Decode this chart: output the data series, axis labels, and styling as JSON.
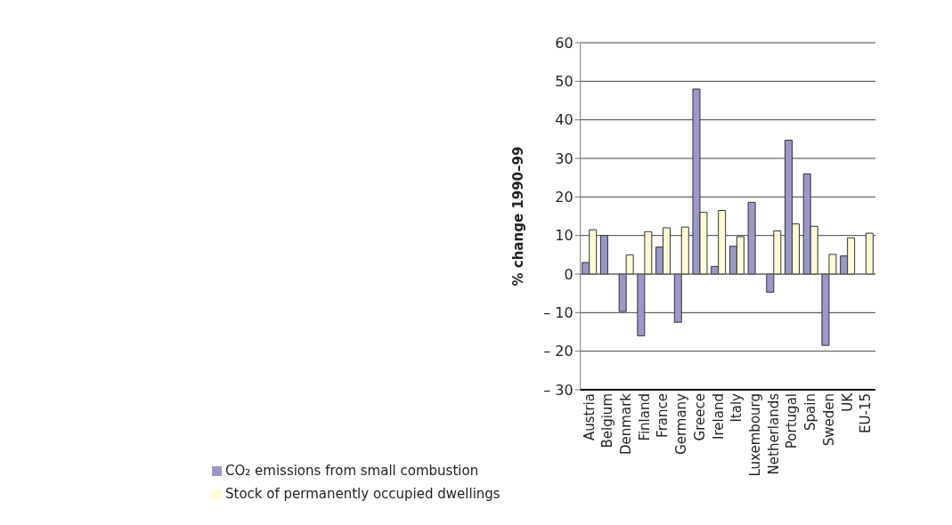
{
  "chart_data": {
    "type": "bar",
    "ylabel": "% change 1990–99",
    "categories": [
      "Austria",
      "Belgium",
      "Denmark",
      "Finland",
      "France",
      "Germany",
      "Greece",
      "Ireland",
      "Italy",
      "Luxembourg",
      "Netherlands",
      "Portugal",
      "Spain",
      "Sweden",
      "UK",
      "EU-15"
    ],
    "series": [
      {
        "name": "CO₂ emissions from small combustion",
        "color": "#9b97c8",
        "values": [
          3,
          10,
          -9.7,
          -16,
          7,
          -12.5,
          48,
          2,
          7.2,
          18.6,
          -4.7,
          34.7,
          26,
          -18.5,
          4.7,
          null
        ]
      },
      {
        "name": "Stock of permanently occupied dwellings",
        "color": "#fffad6",
        "values": [
          11.5,
          null,
          5,
          11,
          12,
          12.2,
          16,
          16.5,
          9.7,
          null,
          11.2,
          13,
          12.4,
          5.1,
          9.4,
          10.6
        ]
      }
    ],
    "ylim": [
      -30,
      60
    ],
    "yticks": [
      {
        "value": -30,
        "label": "– 30"
      },
      {
        "value": -20,
        "label": "– 20"
      },
      {
        "value": -10,
        "label": "– 10"
      },
      0,
      10,
      20,
      30,
      40,
      50,
      60
    ],
    "grid": "y",
    "legend": "bottom left"
  }
}
